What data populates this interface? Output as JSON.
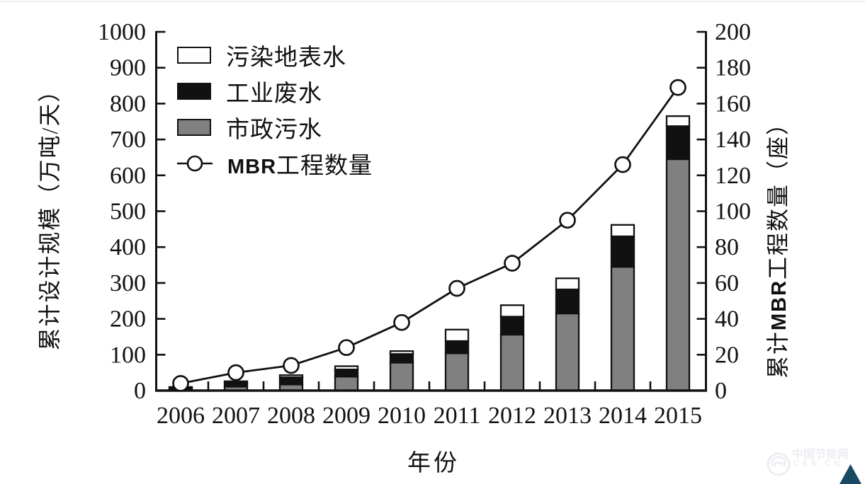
{
  "page": {
    "background": "#ffffff",
    "top_border_color": "#ececec"
  },
  "watermark": {
    "logo": "ces-circle-logo",
    "line1": "中国节能网",
    "line2": "CES.CN",
    "text_color": "#eeedf3",
    "triangle_color": "#1a4a63"
  },
  "chart_data": {
    "type": "bar",
    "subtype": "stacked-bars-with-line-overlay",
    "x": {
      "title": "年份",
      "categories": [
        "2006",
        "2007",
        "2008",
        "2009",
        "2010",
        "2011",
        "2012",
        "2013",
        "2014",
        "2015"
      ]
    },
    "left_axis": {
      "title": "累计设计规模（万吨/天）",
      "min": 0,
      "max": 1000,
      "tick_step": 100,
      "ticks": [
        "0",
        "100",
        "200",
        "300",
        "400",
        "500",
        "600",
        "700",
        "800",
        "900",
        "1000"
      ]
    },
    "right_axis": {
      "title_prefix": "累计",
      "title_mbr": "MBR",
      "title_suffix": "工程数量（座）",
      "min": 0,
      "max": 200,
      "tick_step": 20,
      "ticks": [
        "0",
        "20",
        "40",
        "60",
        "80",
        "100",
        "120",
        "140",
        "160",
        "180",
        "200"
      ]
    },
    "series": [
      {
        "name": "市政污水",
        "type": "bar-stack",
        "stack_order": "bottom",
        "color": "#808080",
        "values": [
          4,
          11,
          17,
          39,
          78,
          104,
          156,
          215,
          345,
          645
        ]
      },
      {
        "name": "工业废水",
        "type": "bar-stack",
        "stack_order": "middle",
        "color": "#111111",
        "values": [
          4,
          11,
          20,
          20,
          24,
          34,
          50,
          67,
          85,
          92
        ]
      },
      {
        "name": "污染地表水",
        "type": "bar-stack",
        "stack_order": "top",
        "color": "#ffffff",
        "values": [
          2,
          4,
          6,
          9,
          8,
          32,
          32,
          31,
          32,
          28
        ]
      },
      {
        "name": "MBR工程数量",
        "type": "line",
        "axis": "right",
        "marker": "open-circle",
        "color": "#111111",
        "values": [
          4,
          10,
          14,
          24,
          38,
          57,
          71,
          95,
          126,
          169
        ]
      }
    ],
    "bar_totals": [
      10,
      26,
      43,
      68,
      110,
      170,
      238,
      313,
      462,
      765
    ],
    "legend": {
      "position": "top-left-inside-plot",
      "items": [
        {
          "label": "污染地表水",
          "swatch": "white-box"
        },
        {
          "label": "工业废水",
          "swatch": "black-box"
        },
        {
          "label": "市政污水",
          "swatch": "gray-box"
        },
        {
          "label_en": "MBR",
          "label_zh": "工程数量",
          "swatch": "line-open-circle"
        }
      ]
    },
    "grid": "off",
    "bar_border_color": "#111111"
  }
}
